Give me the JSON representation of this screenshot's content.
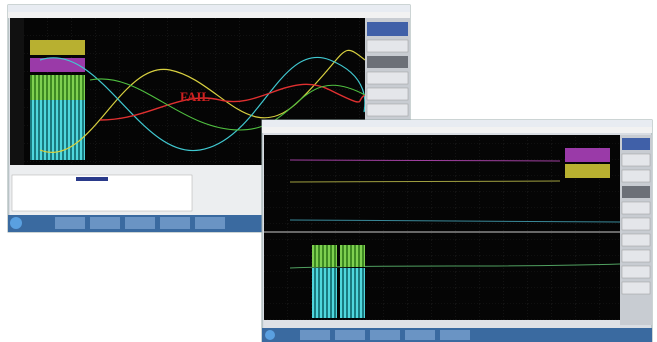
{
  "window1": {
    "status": "FAIL"
  }
}
